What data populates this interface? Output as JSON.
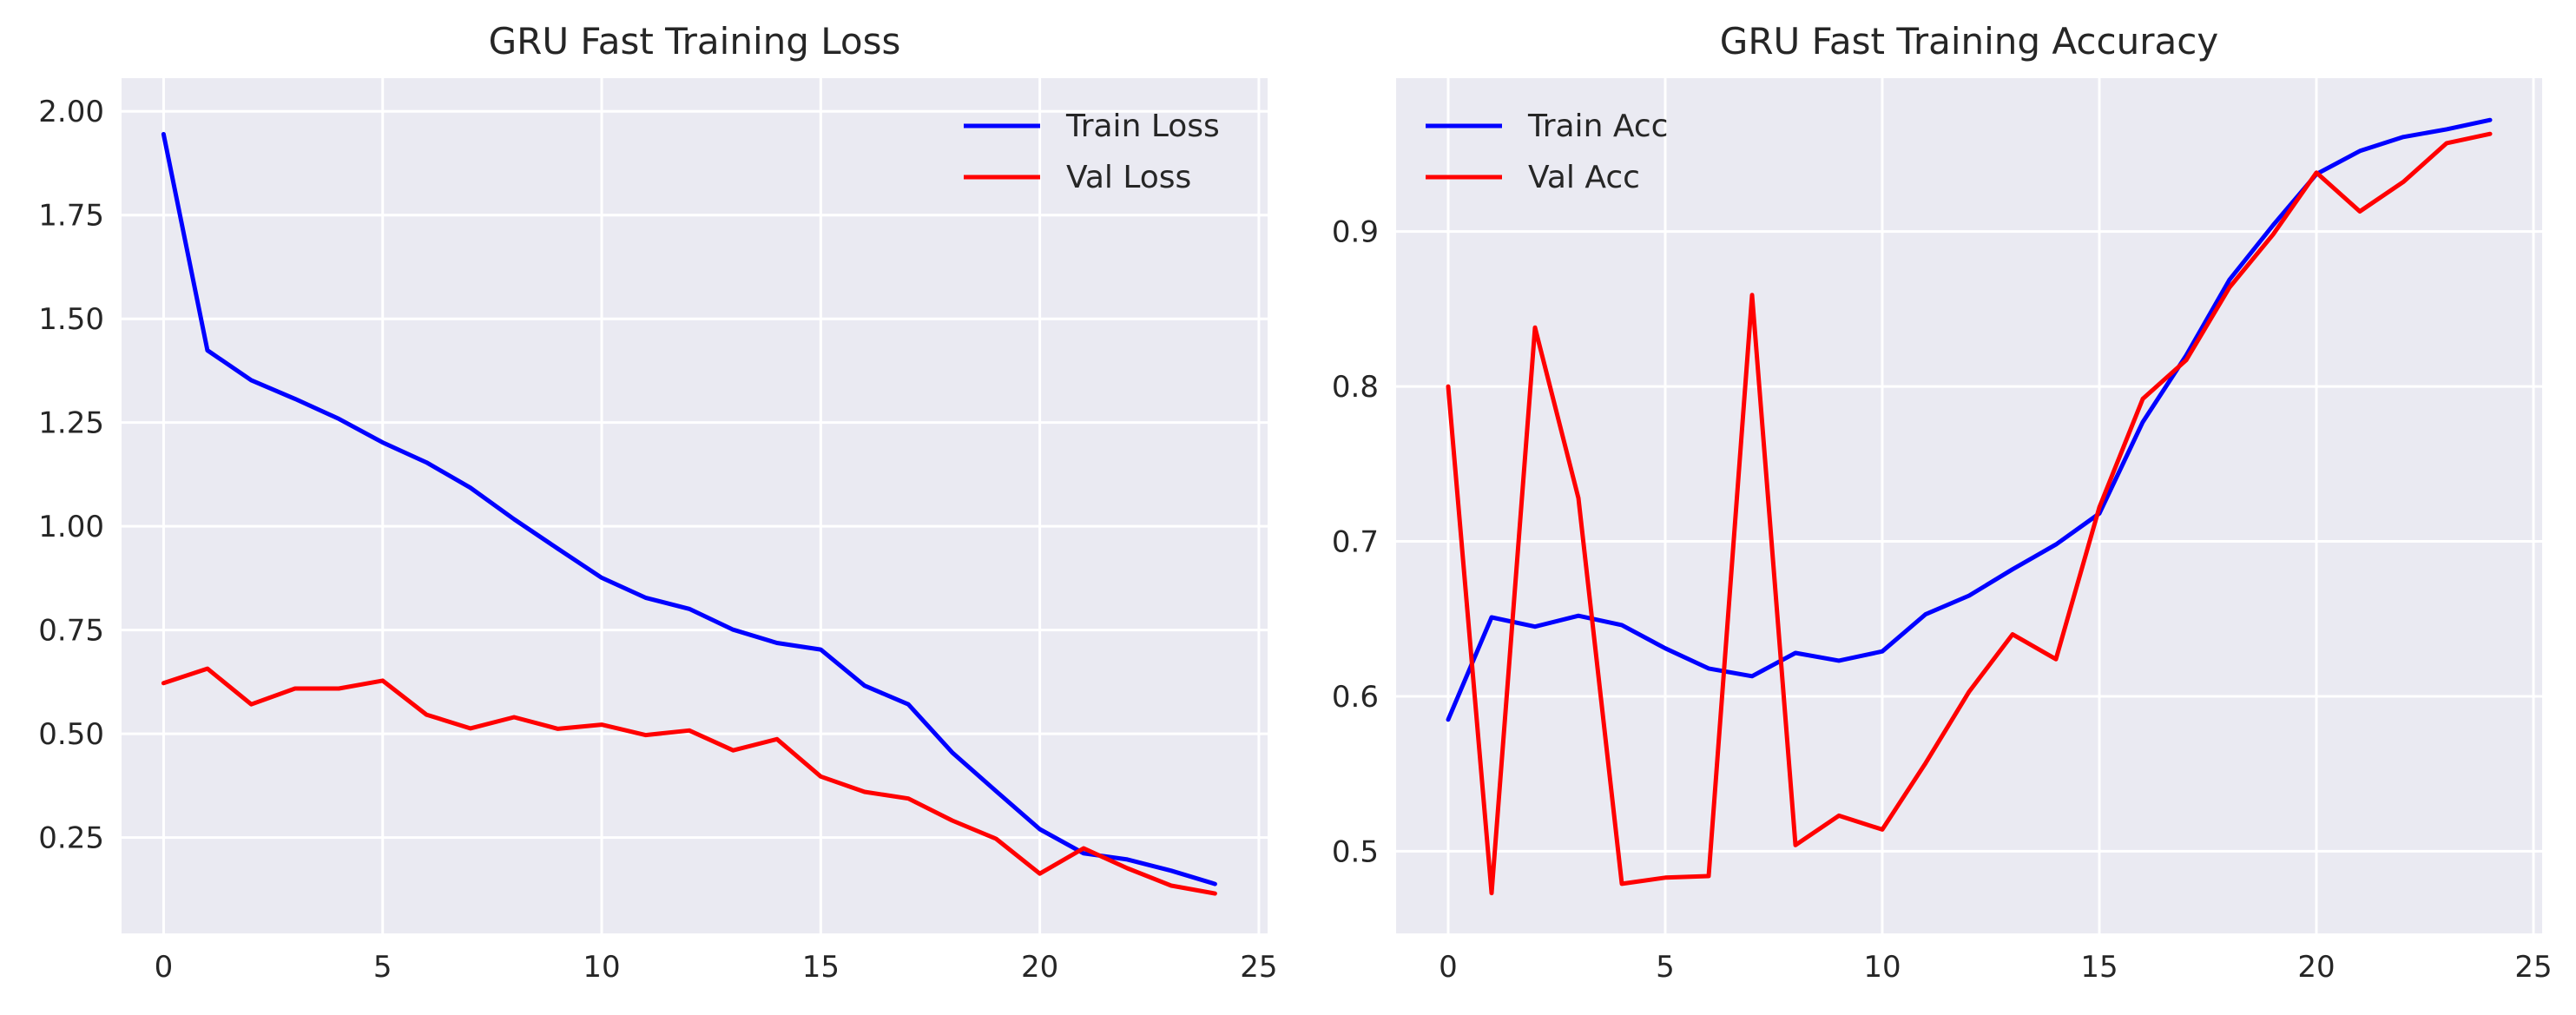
{
  "chart_data": [
    {
      "type": "line",
      "title": "GRU Fast Training Loss",
      "xlabel": "",
      "ylabel": "",
      "xlim": [
        -0.96,
        25.2
      ],
      "ylim": [
        0.019,
        2.08
      ],
      "xticks": [
        0,
        5,
        10,
        15,
        20,
        25
      ],
      "yticks": [
        0.25,
        0.5,
        0.75,
        1.0,
        1.25,
        1.5,
        1.75,
        2.0
      ],
      "ytick_labels": [
        "0.25",
        "0.50",
        "0.75",
        "1.00",
        "1.25",
        "1.50",
        "1.75",
        "2.00"
      ],
      "grid": true,
      "legend": "upper right",
      "x": [
        0,
        1,
        2,
        3,
        4,
        5,
        6,
        7,
        8,
        9,
        10,
        11,
        12,
        13,
        14,
        15,
        16,
        17,
        18,
        19,
        20,
        21,
        22,
        23,
        24
      ],
      "series": [
        {
          "name": "Train Loss",
          "color": "#0000ff",
          "values": [
            1.945,
            1.424,
            1.352,
            1.307,
            1.259,
            1.202,
            1.154,
            1.093,
            1.017,
            0.946,
            0.876,
            0.828,
            0.801,
            0.751,
            0.719,
            0.703,
            0.616,
            0.571,
            0.455,
            0.362,
            0.27,
            0.212,
            0.197,
            0.17,
            0.138
          ]
        },
        {
          "name": "Val Loss",
          "color": "#ff0000",
          "values": [
            0.622,
            0.657,
            0.571,
            0.609,
            0.609,
            0.628,
            0.546,
            0.513,
            0.54,
            0.512,
            0.522,
            0.497,
            0.508,
            0.46,
            0.487,
            0.397,
            0.36,
            0.344,
            0.291,
            0.247,
            0.163,
            0.224,
            0.176,
            0.134,
            0.115
          ]
        }
      ]
    },
    {
      "type": "line",
      "title": "GRU Fast Training Accuracy",
      "xlabel": "",
      "ylabel": "",
      "xlim": [
        -1.2,
        25.2
      ],
      "ylim": [
        0.447,
        0.999
      ],
      "xticks": [
        0,
        5,
        10,
        15,
        20,
        25
      ],
      "yticks": [
        0.5,
        0.6,
        0.7,
        0.8,
        0.9
      ],
      "ytick_labels": [
        "0.5",
        "0.6",
        "0.7",
        "0.8",
        "0.9"
      ],
      "grid": true,
      "legend": "upper left",
      "x": [
        0,
        1,
        2,
        3,
        4,
        5,
        6,
        7,
        8,
        9,
        10,
        11,
        12,
        13,
        14,
        15,
        16,
        17,
        18,
        19,
        20,
        21,
        22,
        23,
        24
      ],
      "series": [
        {
          "name": "Train Acc",
          "color": "#0000ff",
          "values": [
            0.585,
            0.651,
            0.645,
            0.652,
            0.646,
            0.631,
            0.618,
            0.613,
            0.628,
            0.623,
            0.629,
            0.653,
            0.665,
            0.682,
            0.698,
            0.718,
            0.777,
            0.82,
            0.869,
            0.904,
            0.937,
            0.952,
            0.961,
            0.966,
            0.972
          ]
        },
        {
          "name": "Val Acc",
          "color": "#ff0000",
          "values": [
            0.8,
            0.473,
            0.838,
            0.728,
            0.479,
            0.483,
            0.484,
            0.859,
            0.504,
            0.523,
            0.514,
            0.557,
            0.603,
            0.64,
            0.624,
            0.722,
            0.792,
            0.817,
            0.864,
            0.898,
            0.938,
            0.913,
            0.932,
            0.957,
            0.963
          ]
        }
      ]
    }
  ]
}
